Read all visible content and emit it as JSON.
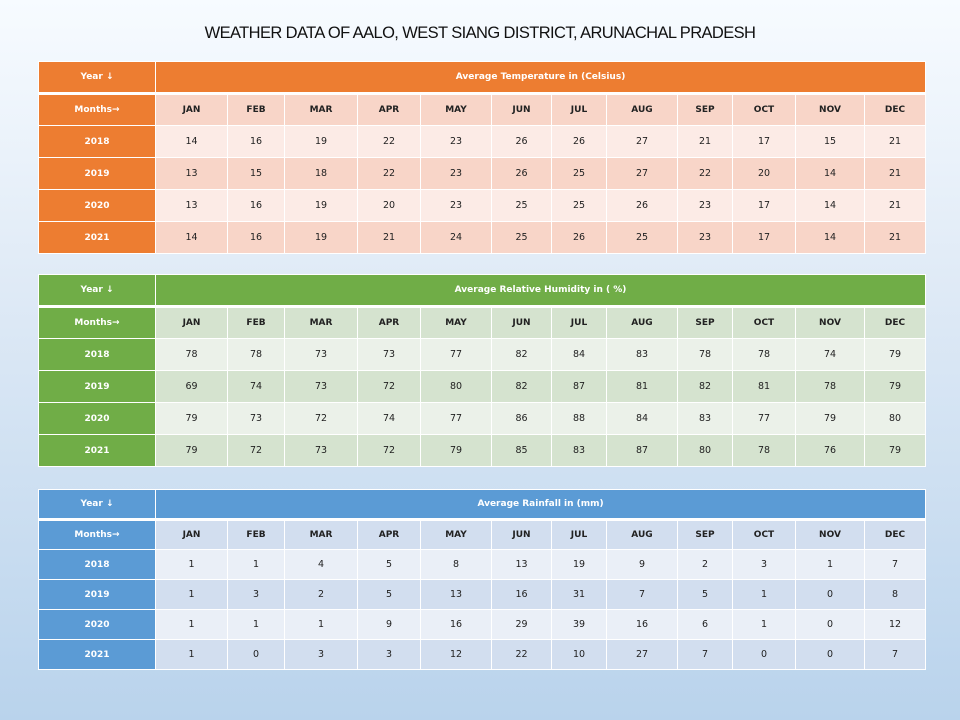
{
  "title": "WEATHER DATA OF AALO, WEST SIANG DISTRICT, ARUNACHAL PRADESH",
  "year_label": "Year ↓",
  "months_label": "Months→",
  "months": [
    "JAN",
    "FEB",
    "MAR",
    "APR",
    "MAY",
    "JUN",
    "JUL",
    "AUG",
    "SEP",
    "OCT",
    "NOV",
    "DEC"
  ],
  "tables": [
    {
      "heading": "Average Temperature in (Celsius)",
      "colors": {
        "header": "#ed7d31",
        "months": "#f8d5c8",
        "odd": "#fcebe6",
        "even": "#f8d5c8"
      },
      "rows": [
        {
          "year": "2018",
          "values": [
            "14",
            "16",
            "19",
            "22",
            "23",
            "26",
            "26",
            "27",
            "21",
            "17",
            "15",
            "21"
          ]
        },
        {
          "year": "2019",
          "values": [
            "13",
            "15",
            "18",
            "22",
            "23",
            "26",
            "25",
            "27",
            "22",
            "20",
            "14",
            "21"
          ]
        },
        {
          "year": "2020",
          "values": [
            "13",
            "16",
            "19",
            "20",
            "23",
            "25",
            "25",
            "26",
            "23",
            "17",
            "14",
            "21"
          ]
        },
        {
          "year": "2021",
          "values": [
            "14",
            "16",
            "19",
            "21",
            "24",
            "25",
            "26",
            "25",
            "23",
            "17",
            "14",
            "21"
          ]
        }
      ]
    },
    {
      "heading": "Average Relative Humidity in ( %)",
      "colors": {
        "header": "#70ad47",
        "months": "#d5e3cf",
        "odd": "#ebf1e9",
        "even": "#d5e3cf"
      },
      "rows": [
        {
          "year": "2018",
          "values": [
            "78",
            "78",
            "73",
            "73",
            "77",
            "82",
            "84",
            "83",
            "78",
            "78",
            "74",
            "79"
          ]
        },
        {
          "year": "2019",
          "values": [
            "69",
            "74",
            "73",
            "72",
            "80",
            "82",
            "87",
            "81",
            "82",
            "81",
            "78",
            "79"
          ]
        },
        {
          "year": "2020",
          "values": [
            "79",
            "73",
            "72",
            "74",
            "77",
            "86",
            "88",
            "84",
            "83",
            "77",
            "79",
            "80"
          ]
        },
        {
          "year": "2021",
          "values": [
            "79",
            "72",
            "73",
            "72",
            "79",
            "85",
            "83",
            "87",
            "80",
            "78",
            "76",
            "79"
          ]
        }
      ]
    },
    {
      "heading": "Average Rainfall in (mm)",
      "colors": {
        "header": "#5b9bd5",
        "months": "#d2deef",
        "odd": "#eaeff7",
        "even": "#d2deef"
      },
      "rows": [
        {
          "year": "2018",
          "values": [
            "1",
            "1",
            "4",
            "5",
            "8",
            "13",
            "19",
            "9",
            "2",
            "3",
            "1",
            "7"
          ]
        },
        {
          "year": "2019",
          "values": [
            "1",
            "3",
            "2",
            "5",
            "13",
            "16",
            "31",
            "7",
            "5",
            "1",
            "0",
            "8"
          ]
        },
        {
          "year": "2020",
          "values": [
            "1",
            "1",
            "1",
            "9",
            "16",
            "29",
            "39",
            "16",
            "6",
            "1",
            "0",
            "12"
          ]
        },
        {
          "year": "2021",
          "values": [
            "1",
            "0",
            "3",
            "3",
            "12",
            "22",
            "10",
            "27",
            "7",
            "0",
            "0",
            "7"
          ]
        }
      ]
    }
  ]
}
